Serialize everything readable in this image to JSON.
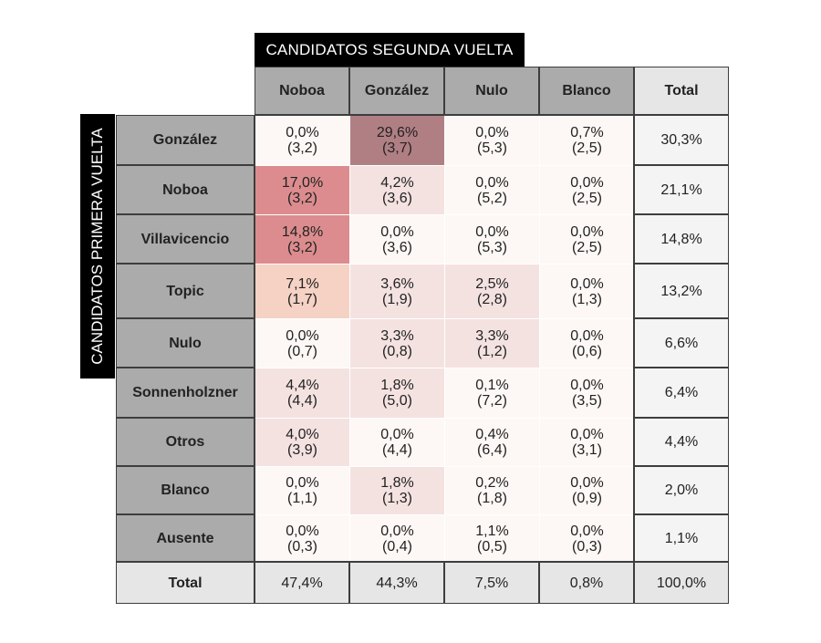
{
  "header_top": "CANDIDATOS SEGUNDA VUELTA",
  "header_side": "CANDIDATOS PRIMERA VUELTA",
  "chart_data": {
    "type": "heatmap",
    "columns": [
      "Noboa",
      "González",
      "Nulo",
      "Blanco"
    ],
    "total_label": "Total",
    "rows": [
      {
        "label": "González",
        "cells": [
          [
            "0,0%",
            "(3,2)"
          ],
          [
            "29,6%",
            "(3,7)"
          ],
          [
            "0,0%",
            "(5,3)"
          ],
          [
            "0,7%",
            "(2,5)"
          ]
        ],
        "values": [
          0.0,
          29.6,
          0.0,
          0.7
        ],
        "total": "30,3%"
      },
      {
        "label": "Noboa",
        "cells": [
          [
            "17,0%",
            "(3,2)"
          ],
          [
            "4,2%",
            "(3,6)"
          ],
          [
            "0,0%",
            "(5,2)"
          ],
          [
            "0,0%",
            "(2,5)"
          ]
        ],
        "values": [
          17.0,
          4.2,
          0.0,
          0.0
        ],
        "total": "21,1%"
      },
      {
        "label": "Villavicencio",
        "cells": [
          [
            "14,8%",
            "(3,2)"
          ],
          [
            "0,0%",
            "(3,6)"
          ],
          [
            "0,0%",
            "(5,3)"
          ],
          [
            "0,0%",
            "(2,5)"
          ]
        ],
        "values": [
          14.8,
          0.0,
          0.0,
          0.0
        ],
        "total": "14,8%"
      },
      {
        "label": "Topic",
        "cells": [
          [
            "7,1%",
            "(1,7)"
          ],
          [
            "3,6%",
            "(1,9)"
          ],
          [
            "2,5%",
            "(2,8)"
          ],
          [
            "0,0%",
            "(1,3)"
          ]
        ],
        "values": [
          7.1,
          3.6,
          2.5,
          0.0
        ],
        "total": "13,2%"
      },
      {
        "label": "Nulo",
        "cells": [
          [
            "0,0%",
            "(0,7)"
          ],
          [
            "3,3%",
            "(0,8)"
          ],
          [
            "3,3%",
            "(1,2)"
          ],
          [
            "0,0%",
            "(0,6)"
          ]
        ],
        "values": [
          0.0,
          3.3,
          3.3,
          0.0
        ],
        "total": "6,6%"
      },
      {
        "label": "Sonnenholzner",
        "cells": [
          [
            "4,4%",
            "(4,4)"
          ],
          [
            "1,8%",
            "(5,0)"
          ],
          [
            "0,1%",
            "(7,2)"
          ],
          [
            "0,0%",
            "(3,5)"
          ]
        ],
        "values": [
          4.4,
          1.8,
          0.1,
          0.0
        ],
        "total": "6,4%"
      },
      {
        "label": "Otros",
        "cells": [
          [
            "4,0%",
            "(3,9)"
          ],
          [
            "0,0%",
            "(4,4)"
          ],
          [
            "0,4%",
            "(6,4)"
          ],
          [
            "0,0%",
            "(3,1)"
          ]
        ],
        "values": [
          4.0,
          0.0,
          0.4,
          0.0
        ],
        "total": "4,4%"
      },
      {
        "label": "Blanco",
        "cells": [
          [
            "0,0%",
            "(1,1)"
          ],
          [
            "1,8%",
            "(1,3)"
          ],
          [
            "0,2%",
            "(1,8)"
          ],
          [
            "0,0%",
            "(0,9)"
          ]
        ],
        "values": [
          0.0,
          1.8,
          0.2,
          0.0
        ],
        "total": "2,0%"
      },
      {
        "label": "Ausente",
        "cells": [
          [
            "0,0%",
            "(0,3)"
          ],
          [
            "0,0%",
            "(0,4)"
          ],
          [
            "1,1%",
            "(0,5)"
          ],
          [
            "0,0%",
            "(0,3)"
          ]
        ],
        "values": [
          0.0,
          0.0,
          1.1,
          0.0
        ],
        "total": "1,1%"
      }
    ],
    "column_totals": [
      "47,4%",
      "44,3%",
      "7,5%",
      "0,8%"
    ],
    "grand_total": "100,0%",
    "color_scale": {
      "low": "#fdf8f6",
      "tint": "#f4e2e1",
      "peach": "#f5d2c4",
      "mid": "#dc8c8e",
      "high": "#b07f84"
    }
  }
}
